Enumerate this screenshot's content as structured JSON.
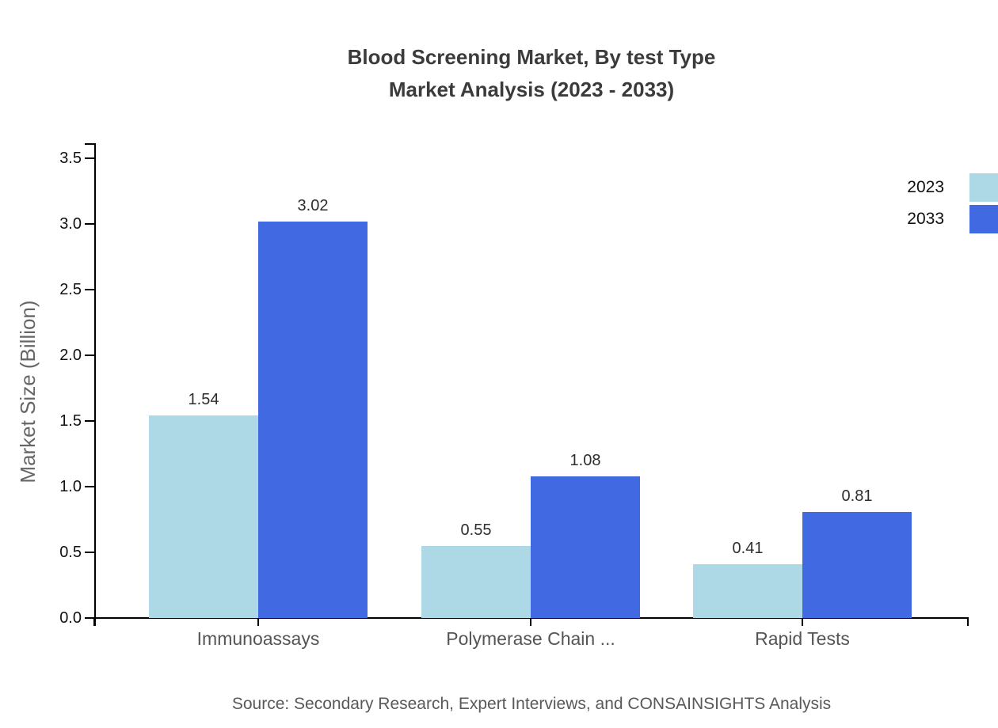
{
  "title": {
    "line1": "Blood Screening Market, By test Type",
    "line2": "Market Analysis (2023 - 2033)"
  },
  "source": "Source: Secondary Research, Expert Interviews, and CONSAINSIGHTS Analysis",
  "chart_data": {
    "type": "bar",
    "title": "Blood Screening Market, By test Type — Market Analysis (2023 - 2033)",
    "categories": [
      "Immunoassays",
      "Polymerase Chain ...",
      "Rapid Tests"
    ],
    "series": [
      {
        "name": "2023",
        "color": "#ADD8E6",
        "values": [
          1.54,
          0.55,
          0.41
        ]
      },
      {
        "name": "2033",
        "color": "#4169E1",
        "values": [
          3.02,
          1.08,
          0.81
        ]
      }
    ],
    "xlabel": "",
    "ylabel": "Market Size (Billion)",
    "ylim": [
      0,
      3.5
    ],
    "yticks": [
      0.0,
      0.5,
      1.0,
      1.5,
      2.0,
      2.5,
      3.0,
      3.5
    ],
    "grid": false,
    "legend_position": "top-right",
    "value_label_decimals": 2,
    "axis_color": "#000000",
    "tick_label_color": "#111111",
    "category_label_color": "#555555",
    "value_label_color": "#2e2e2e",
    "title_color": "#3b3b3b",
    "source_color": "#595959"
  }
}
